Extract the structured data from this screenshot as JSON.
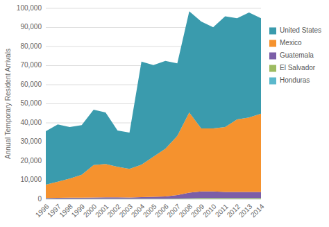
{
  "chart_data": {
    "type": "area",
    "stacked": true,
    "y_label": "Annual Temporary Resident Arrivals",
    "x": [
      1996,
      1997,
      1998,
      1999,
      2000,
      2001,
      2002,
      2003,
      2004,
      2005,
      2006,
      2007,
      2008,
      2009,
      2010,
      2011,
      2012,
      2013,
      2014
    ],
    "series": [
      {
        "name": "Honduras",
        "color": "#5BB8CC",
        "values": [
          200,
          200,
          200,
          200,
          200,
          200,
          200,
          200,
          200,
          200,
          200,
          200,
          200,
          200,
          200,
          200,
          200,
          200,
          200
        ]
      },
      {
        "name": "El Salvador",
        "color": "#9DBB61",
        "values": [
          100,
          100,
          100,
          100,
          100,
          100,
          100,
          100,
          100,
          100,
          100,
          200,
          300,
          400,
          400,
          400,
          400,
          400,
          400
        ]
      },
      {
        "name": "Guatemala",
        "color": "#7B5EA7",
        "values": [
          300,
          400,
          500,
          500,
          600,
          700,
          700,
          600,
          800,
          1000,
          1200,
          1800,
          3000,
          3500,
          3500,
          3200,
          3200,
          3200,
          3200
        ]
      },
      {
        "name": "Mexico",
        "color": "#F5922E",
        "values": [
          7000,
          8500,
          10000,
          12000,
          17000,
          17500,
          16000,
          15000,
          17000,
          21000,
          25000,
          31000,
          42000,
          33000,
          33000,
          34000,
          38000,
          39000,
          41000
        ]
      },
      {
        "name": "United States",
        "color": "#3A9BAD",
        "values": [
          28000,
          30000,
          27000,
          26000,
          29000,
          27000,
          19000,
          19000,
          54000,
          48000,
          46000,
          38000,
          53000,
          56000,
          53000,
          58000,
          53000,
          55000,
          50000
        ]
      }
    ],
    "xlim": [
      1996,
      2014
    ],
    "xticks": [
      1996,
      1997,
      1998,
      1999,
      2000,
      2001,
      2002,
      2003,
      2004,
      2005,
      2006,
      2007,
      2008,
      2009,
      2010,
      2011,
      2012,
      2013,
      2014
    ],
    "ylim": [
      0,
      100000
    ],
    "yticks": [
      0,
      {
        "value": 10000,
        "label": "10,000"
      },
      {
        "value": 20000,
        "label": "20,000"
      },
      {
        "value": 30000,
        "label": "30,000"
      },
      {
        "value": 40000,
        "label": "40,000"
      },
      {
        "value": 50000,
        "label": "50,000"
      },
      {
        "value": 60000,
        "label": "60,000"
      },
      {
        "value": 70000,
        "label": "70,000"
      },
      {
        "value": 80000,
        "label": "80,000"
      },
      {
        "value": 90000,
        "label": "90,000"
      },
      {
        "value": 100000,
        "label": "100,000"
      }
    ],
    "grid": true,
    "legend": "right"
  }
}
